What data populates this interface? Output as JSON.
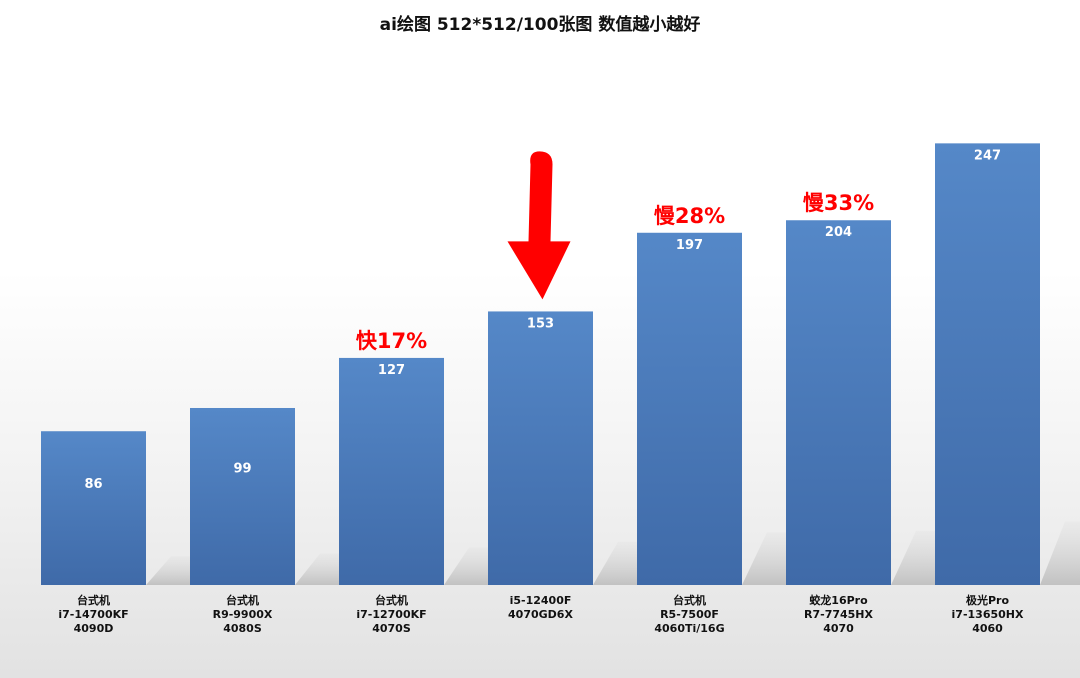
{
  "chart_data": {
    "type": "bar",
    "title": "ai绘图 512*512/100张图 数值越小越好",
    "categories": [
      [
        "台式机",
        "i7-14700KF",
        "4090D"
      ],
      [
        "台式机",
        "R9-9900X",
        "4080S"
      ],
      [
        "台式机",
        "i7-12700KF",
        "4070S"
      ],
      [
        "i5-12400F",
        "4070GD6X"
      ],
      [
        "台式机",
        "R5-7500F",
        "4060Ti/16G"
      ],
      [
        "蛟龙16Pro",
        "R7-7745HX",
        "4070"
      ],
      [
        "极光Pro",
        "i7-13650HX",
        "4060"
      ]
    ],
    "values": [
      86,
      99,
      127,
      153,
      197,
      204,
      247
    ],
    "annotations": [
      {
        "index": 2,
        "text": "快17%"
      },
      {
        "index": 4,
        "text": "慢28%"
      },
      {
        "index": 5,
        "text": "慢33%"
      }
    ],
    "highlight_arrow_index": 3,
    "ylim": [
      0,
      260
    ],
    "grid": false,
    "colors": {
      "bar_top": "#5588c8",
      "bar_bottom": "#3f6aa8",
      "value_label": "#ffffff",
      "annotation": "#ff0000",
      "arrow": "#ff0000",
      "shadow": "#c8c8c8"
    }
  }
}
